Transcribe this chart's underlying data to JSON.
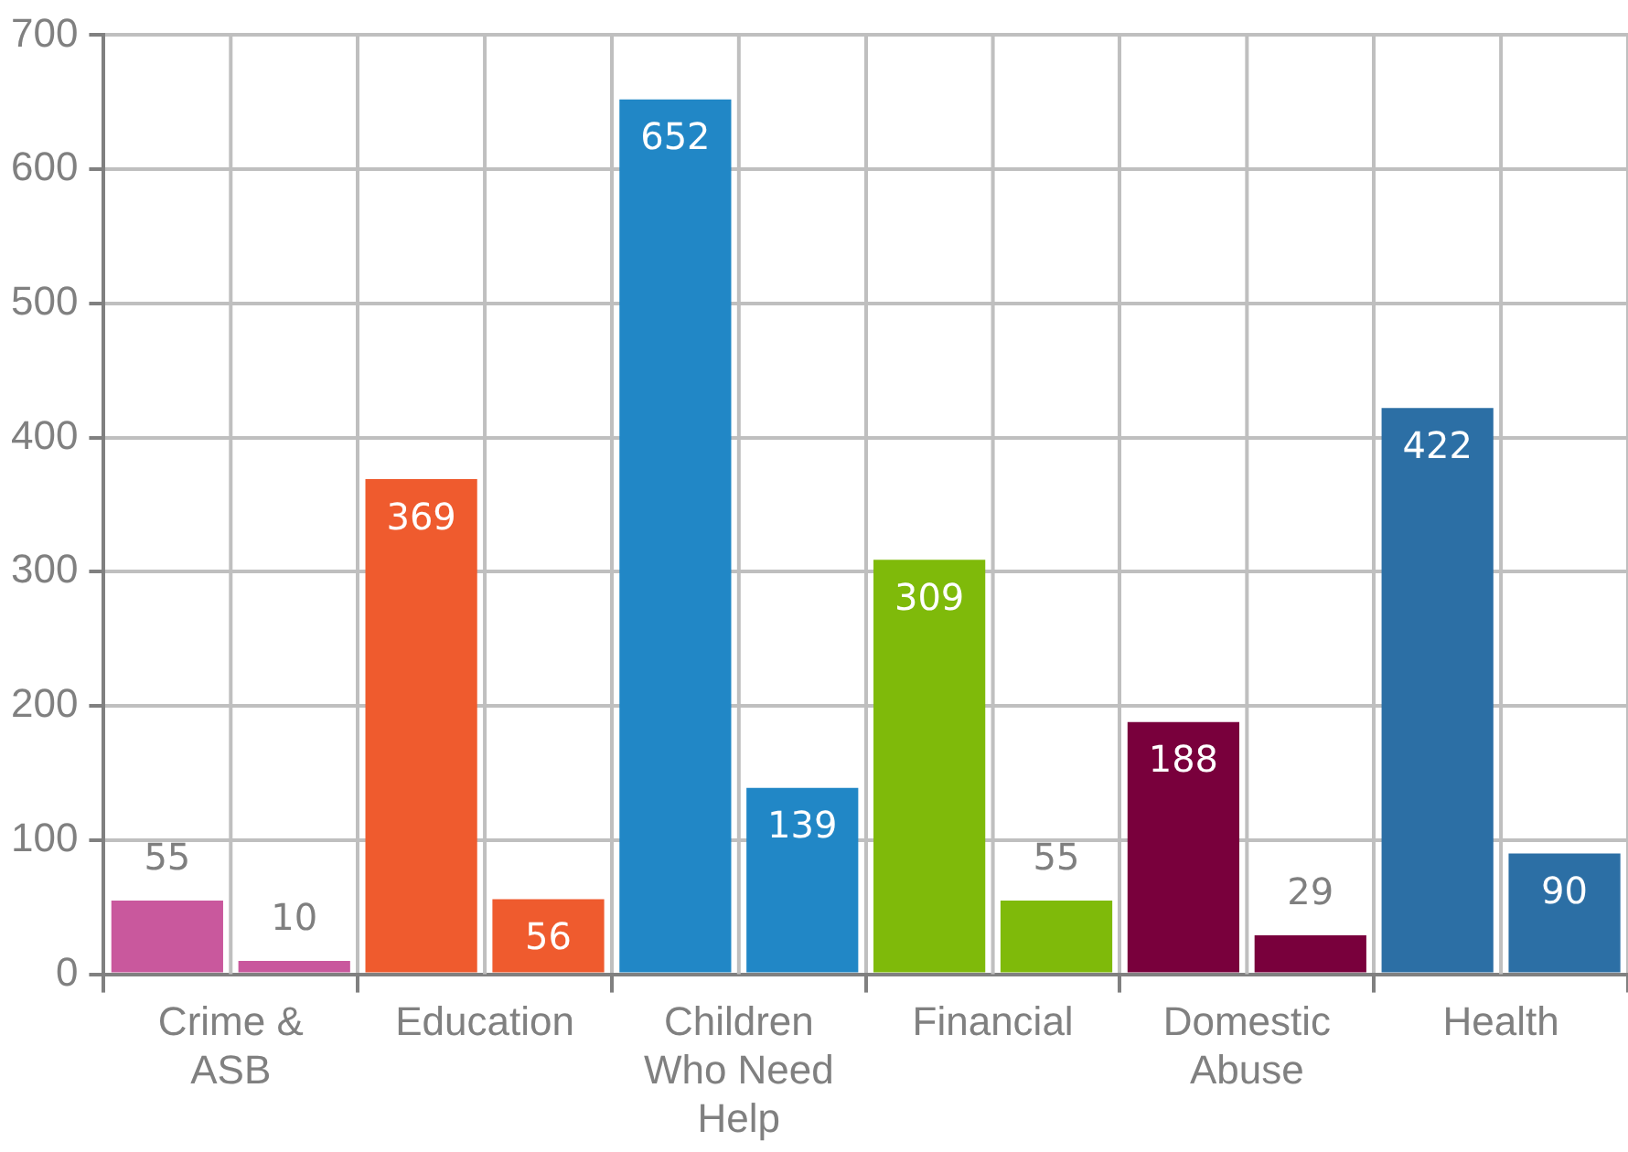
{
  "chart_data": {
    "type": "bar",
    "categories": [
      "Crime & ASB",
      "Education",
      "Children Who Need Help",
      "Financial",
      "Domestic Abuse",
      "Health"
    ],
    "series": [
      {
        "colors": [
          "#c9589d",
          "#ef5b2e",
          "#2187c6",
          "#7fba0a",
          "#79003c",
          "#2c6fa5"
        ],
        "values": [
          55,
          369,
          652,
          309,
          188,
          422
        ]
      },
      {
        "colors": [
          "#c9589d",
          "#ef5b2e",
          "#2187c6",
          "#7fba0a",
          "#79003c",
          "#2c6fa5"
        ],
        "values": [
          10,
          56,
          139,
          55,
          29,
          90
        ]
      }
    ],
    "ylim": [
      0,
      700
    ],
    "yticks": [
      0,
      100,
      200,
      300,
      400,
      500,
      600,
      700
    ],
    "grid": true,
    "data_labels": true
  }
}
